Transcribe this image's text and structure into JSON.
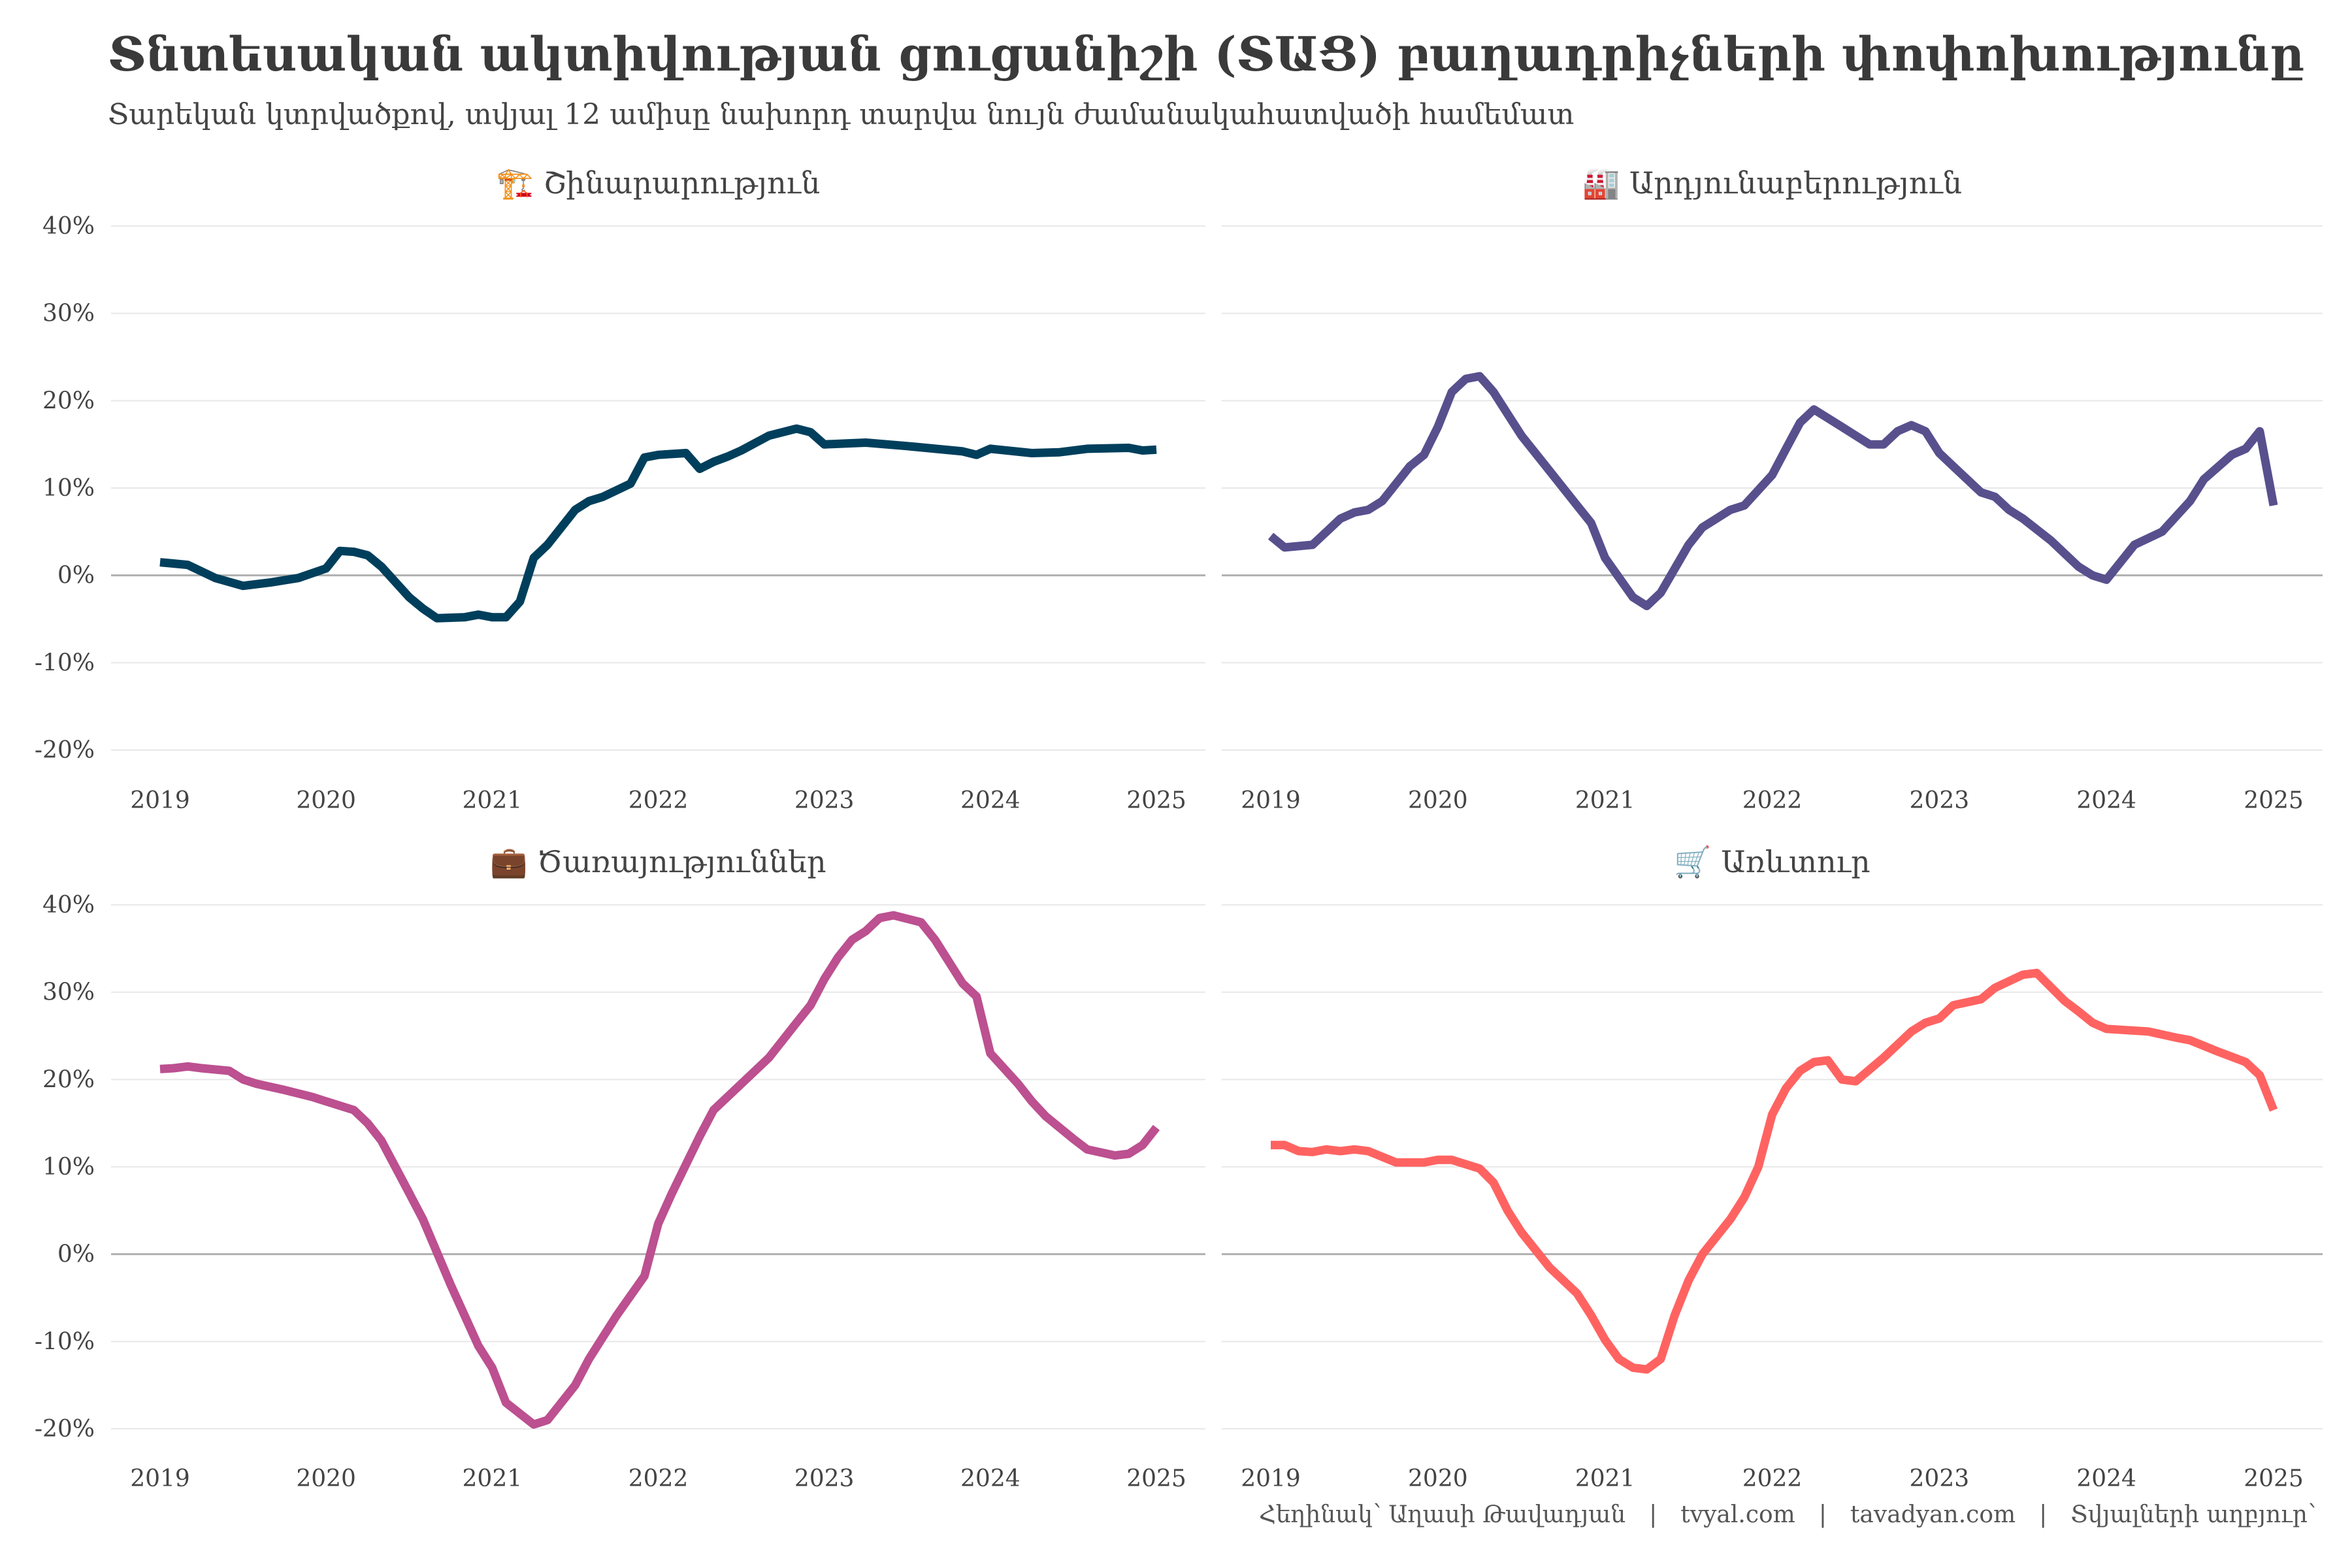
{
  "title": "Տնտեսական ակտիվության ցուցանիշի (ՏԱՑ) բաղադրիչների փոփոխությունը",
  "subtitle": "Տարեկան կտրվածքով, տվյալ 12 ամիսը նախորդ տարվա նույն ժամանակահատվածի համեմատ",
  "caption": {
    "author": "Հեղինակ՝ Աղասի Թավադյան",
    "site1": "tvyal.com",
    "site2": "tavadyan.com",
    "source": "Տվյալների աղբյուր՝",
    "separator": "|"
  },
  "chart_data": [
    {
      "type": "line",
      "title": "Շինարարություն",
      "icon": "🏗️",
      "color": "#003f5c",
      "ylim": [
        -20,
        40
      ],
      "yticks": [
        -20,
        -10,
        0,
        10,
        20,
        30,
        40
      ],
      "ytick_labels": [
        "-20%",
        "-10%",
        "0%",
        "10%",
        "20%",
        "30%",
        "40%"
      ],
      "xticks": [
        2019,
        2020,
        2021,
        2022,
        2023,
        2024,
        2025
      ],
      "xlim": [
        2019,
        2025
      ],
      "x": [
        2019.0,
        2019.167,
        2019.333,
        2019.5,
        2019.667,
        2019.833,
        2020.0,
        2020.083,
        2020.167,
        2020.25,
        2020.333,
        2020.5,
        2020.583,
        2020.667,
        2020.833,
        2020.917,
        2021.0,
        2021.083,
        2021.167,
        2021.25,
        2021.333,
        2021.5,
        2021.583,
        2021.667,
        2021.833,
        2021.917,
        2022.0,
        2022.167,
        2022.25,
        2022.333,
        2022.417,
        2022.5,
        2022.667,
        2022.833,
        2022.917,
        2023.0,
        2023.25,
        2023.5,
        2023.833,
        2023.917,
        2024.0,
        2024.25,
        2024.417,
        2024.583,
        2024.833,
        2024.917,
        2025.0
      ],
      "values": [
        1.5,
        1.2,
        -0.3,
        -1.2,
        -0.8,
        -0.3,
        0.8,
        2.8,
        2.7,
        2.3,
        1.0,
        -2.5,
        -3.8,
        -4.9,
        -4.8,
        -4.5,
        -4.8,
        -4.8,
        -3.0,
        2.0,
        3.5,
        7.5,
        8.5,
        9.0,
        10.5,
        13.5,
        13.8,
        14.0,
        12.2,
        13.0,
        13.6,
        14.3,
        16.0,
        16.8,
        16.4,
        15.0,
        15.2,
        14.8,
        14.2,
        13.8,
        14.5,
        14.0,
        14.1,
        14.5,
        14.6,
        14.3,
        14.4
      ]
    },
    {
      "type": "line",
      "title": "Արդյունաբերություն",
      "icon": "🏭",
      "color": "#58508d",
      "ylim": [
        -20,
        40
      ],
      "yticks": [
        -20,
        -10,
        0,
        10,
        20,
        30,
        40
      ],
      "ytick_labels": [
        "-20%",
        "-10%",
        "0%",
        "10%",
        "20%",
        "30%",
        "40%"
      ],
      "xticks": [
        2019,
        2020,
        2021,
        2022,
        2023,
        2024,
        2025
      ],
      "xlim": [
        2019,
        2025
      ],
      "x": [
        2019.0,
        2019.083,
        2019.25,
        2019.417,
        2019.5,
        2019.583,
        2019.667,
        2019.833,
        2019.917,
        2020.0,
        2020.083,
        2020.167,
        2020.25,
        2020.333,
        2020.5,
        2020.667,
        2020.833,
        2020.917,
        2021.0,
        2021.167,
        2021.25,
        2021.333,
        2021.5,
        2021.583,
        2021.75,
        2021.833,
        2022.0,
        2022.083,
        2022.167,
        2022.25,
        2022.417,
        2022.583,
        2022.667,
        2022.75,
        2022.833,
        2022.917,
        2023.0,
        2023.083,
        2023.25,
        2023.333,
        2023.417,
        2023.5,
        2023.667,
        2023.75,
        2023.833,
        2023.917,
        2024.0,
        2024.167,
        2024.333,
        2024.5,
        2024.583,
        2024.75,
        2024.833,
        2024.917,
        2025.0
      ],
      "values": [
        4.5,
        3.2,
        3.5,
        6.5,
        7.2,
        7.5,
        8.5,
        12.5,
        13.8,
        17.0,
        21.0,
        22.5,
        22.8,
        21.0,
        16.0,
        12.0,
        8.0,
        6.0,
        2.0,
        -2.5,
        -3.5,
        -2.0,
        3.5,
        5.5,
        7.5,
        8.0,
        11.5,
        14.5,
        17.5,
        19.0,
        17.0,
        15.0,
        15.0,
        16.5,
        17.2,
        16.5,
        14.0,
        12.5,
        9.5,
        9.0,
        7.5,
        6.5,
        4.0,
        2.5,
        1.0,
        0.0,
        -0.5,
        3.5,
        5.0,
        8.5,
        11.0,
        13.8,
        14.5,
        16.5,
        8.0
      ]
    },
    {
      "type": "line",
      "title": "Ծառայություններ",
      "icon": "💼",
      "color": "#bc5090",
      "ylim": [
        -20,
        40
      ],
      "yticks": [
        -20,
        -10,
        0,
        10,
        20,
        30,
        40
      ],
      "ytick_labels": [
        "-20%",
        "-10%",
        "0%",
        "10%",
        "20%",
        "30%",
        "40%"
      ],
      "xticks": [
        2019,
        2020,
        2021,
        2022,
        2023,
        2024,
        2025
      ],
      "xlim": [
        2019,
        2025
      ],
      "x": [
        2019.0,
        2019.083,
        2019.167,
        2019.25,
        2019.417,
        2019.5,
        2019.583,
        2019.75,
        2019.917,
        2020.0,
        2020.167,
        2020.25,
        2020.333,
        2020.5,
        2020.583,
        2020.75,
        2020.917,
        2021.0,
        2021.083,
        2021.25,
        2021.333,
        2021.5,
        2021.583,
        2021.75,
        2021.917,
        2022.0,
        2022.083,
        2022.25,
        2022.333,
        2022.5,
        2022.667,
        2022.833,
        2022.917,
        2023.0,
        2023.083,
        2023.167,
        2023.25,
        2023.333,
        2023.417,
        2023.583,
        2023.667,
        2023.833,
        2023.917,
        2024.0,
        2024.167,
        2024.25,
        2024.333,
        2024.5,
        2024.583,
        2024.75,
        2024.833,
        2024.917,
        2025.0
      ],
      "values": [
        21.2,
        21.3,
        21.5,
        21.3,
        21.0,
        20.0,
        19.5,
        18.8,
        18.0,
        17.5,
        16.5,
        15.0,
        13.0,
        7.0,
        4.0,
        -3.5,
        -10.5,
        -13.0,
        -17.0,
        -19.5,
        -19.0,
        -15.0,
        -12.0,
        -7.0,
        -2.5,
        3.5,
        7.0,
        13.5,
        16.5,
        19.5,
        22.5,
        26.5,
        28.5,
        31.5,
        34.0,
        36.0,
        37.0,
        38.5,
        38.8,
        38.0,
        36.0,
        31.0,
        29.5,
        23.0,
        19.5,
        17.5,
        15.8,
        13.2,
        12.0,
        11.3,
        11.5,
        12.5,
        14.5
      ]
    },
    {
      "type": "line",
      "title": "Առևտուր",
      "icon": "🛒",
      "color": "#ff6361",
      "ylim": [
        -20,
        40
      ],
      "yticks": [
        -20,
        -10,
        0,
        10,
        20,
        30,
        40
      ],
      "ytick_labels": [
        "-20%",
        "-10%",
        "0%",
        "10%",
        "20%",
        "30%",
        "40%"
      ],
      "xticks": [
        2019,
        2020,
        2021,
        2022,
        2023,
        2024,
        2025
      ],
      "xlim": [
        2019,
        2025
      ],
      "x": [
        2019.0,
        2019.083,
        2019.167,
        2019.25,
        2019.333,
        2019.417,
        2019.5,
        2019.583,
        2019.75,
        2019.917,
        2020.0,
        2020.083,
        2020.25,
        2020.333,
        2020.417,
        2020.5,
        2020.667,
        2020.833,
        2020.917,
        2021.0,
        2021.083,
        2021.167,
        2021.25,
        2021.333,
        2021.417,
        2021.5,
        2021.583,
        2021.75,
        2021.833,
        2021.917,
        2022.0,
        2022.083,
        2022.167,
        2022.25,
        2022.333,
        2022.417,
        2022.5,
        2022.667,
        2022.75,
        2022.833,
        2022.917,
        2023.0,
        2023.083,
        2023.25,
        2023.333,
        2023.5,
        2023.583,
        2023.75,
        2023.833,
        2023.917,
        2024.0,
        2024.25,
        2024.417,
        2024.5,
        2024.667,
        2024.833,
        2024.917,
        2025.0
      ],
      "values": [
        12.5,
        12.5,
        11.8,
        11.7,
        12.0,
        11.8,
        12.0,
        11.8,
        10.5,
        10.5,
        10.8,
        10.8,
        9.8,
        8.2,
        5.0,
        2.5,
        -1.5,
        -4.5,
        -7.0,
        -9.8,
        -12.0,
        -13.0,
        -13.2,
        -12.0,
        -7.0,
        -3.0,
        0.0,
        4.0,
        6.5,
        10.0,
        16.0,
        19.0,
        21.0,
        22.0,
        22.2,
        20.0,
        19.8,
        22.5,
        24.0,
        25.5,
        26.5,
        27.0,
        28.5,
        29.2,
        30.5,
        32.0,
        32.2,
        29.0,
        27.8,
        26.5,
        25.8,
        25.5,
        24.8,
        24.5,
        23.2,
        22.0,
        20.5,
        16.5
      ]
    }
  ]
}
